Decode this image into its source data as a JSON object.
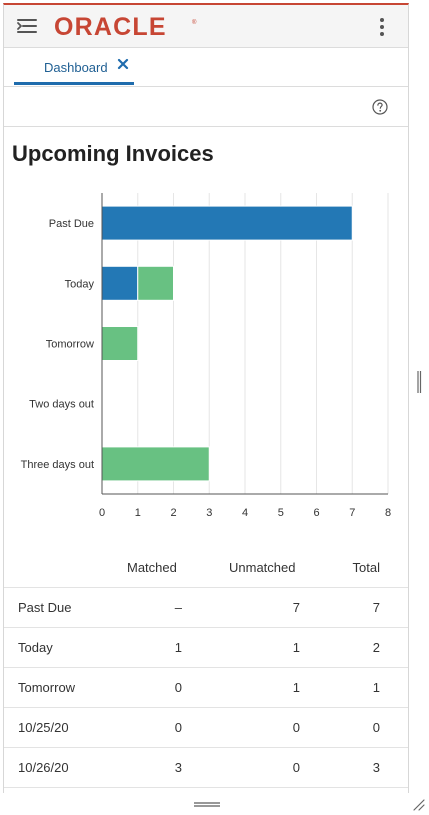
{
  "brand": {
    "name": "ORACLE",
    "color": "#c74634"
  },
  "header": {
    "nav_icon": "menu-collapse-icon",
    "menu_icon": "vertical-ellipsis-icon"
  },
  "tabs": [
    {
      "label": "Dashboard",
      "close_icon": "close-icon",
      "active": true
    }
  ],
  "toolbar": {
    "help_icon": "help-circle-icon"
  },
  "widget": {
    "title": "Upcoming Invoices"
  },
  "chart_data": {
    "type": "bar",
    "orientation": "horizontal",
    "stacked": true,
    "categories": [
      "Past Due",
      "Today",
      "Tomorrow",
      "Two days out",
      "Three days out"
    ],
    "series": [
      {
        "values": [
          7,
          1,
          0,
          0,
          0
        ],
        "color": "#2378b5"
      },
      {
        "values": [
          0,
          1,
          1,
          0,
          3
        ],
        "color": "#68c182"
      }
    ],
    "xlim": [
      0,
      8
    ],
    "xticks": [
      0,
      1,
      2,
      3,
      4,
      5,
      6,
      7,
      8
    ],
    "grid": true,
    "legend": "none"
  },
  "summary": {
    "headers": [
      "Matched",
      "Unmatched",
      "Total"
    ],
    "rows": [
      {
        "label": "Past Due",
        "matched": "–",
        "unmatched": "7",
        "total": "7"
      },
      {
        "label": "Today",
        "matched": "1",
        "unmatched": "1",
        "total": "2"
      },
      {
        "label": "Tomorrow",
        "matched": "0",
        "unmatched": "1",
        "total": "1"
      },
      {
        "label": "10/25/20",
        "matched": "0",
        "unmatched": "0",
        "total": "0"
      },
      {
        "label": "10/26/20",
        "matched": "3",
        "unmatched": "0",
        "total": "3"
      }
    ]
  },
  "window": {
    "vertical_resize_icon": "vertical-resize-handle-icon",
    "horizontal_resize_icon": "horizontal-resize-handle-icon",
    "corner_icon": "resize-grip-icon"
  }
}
